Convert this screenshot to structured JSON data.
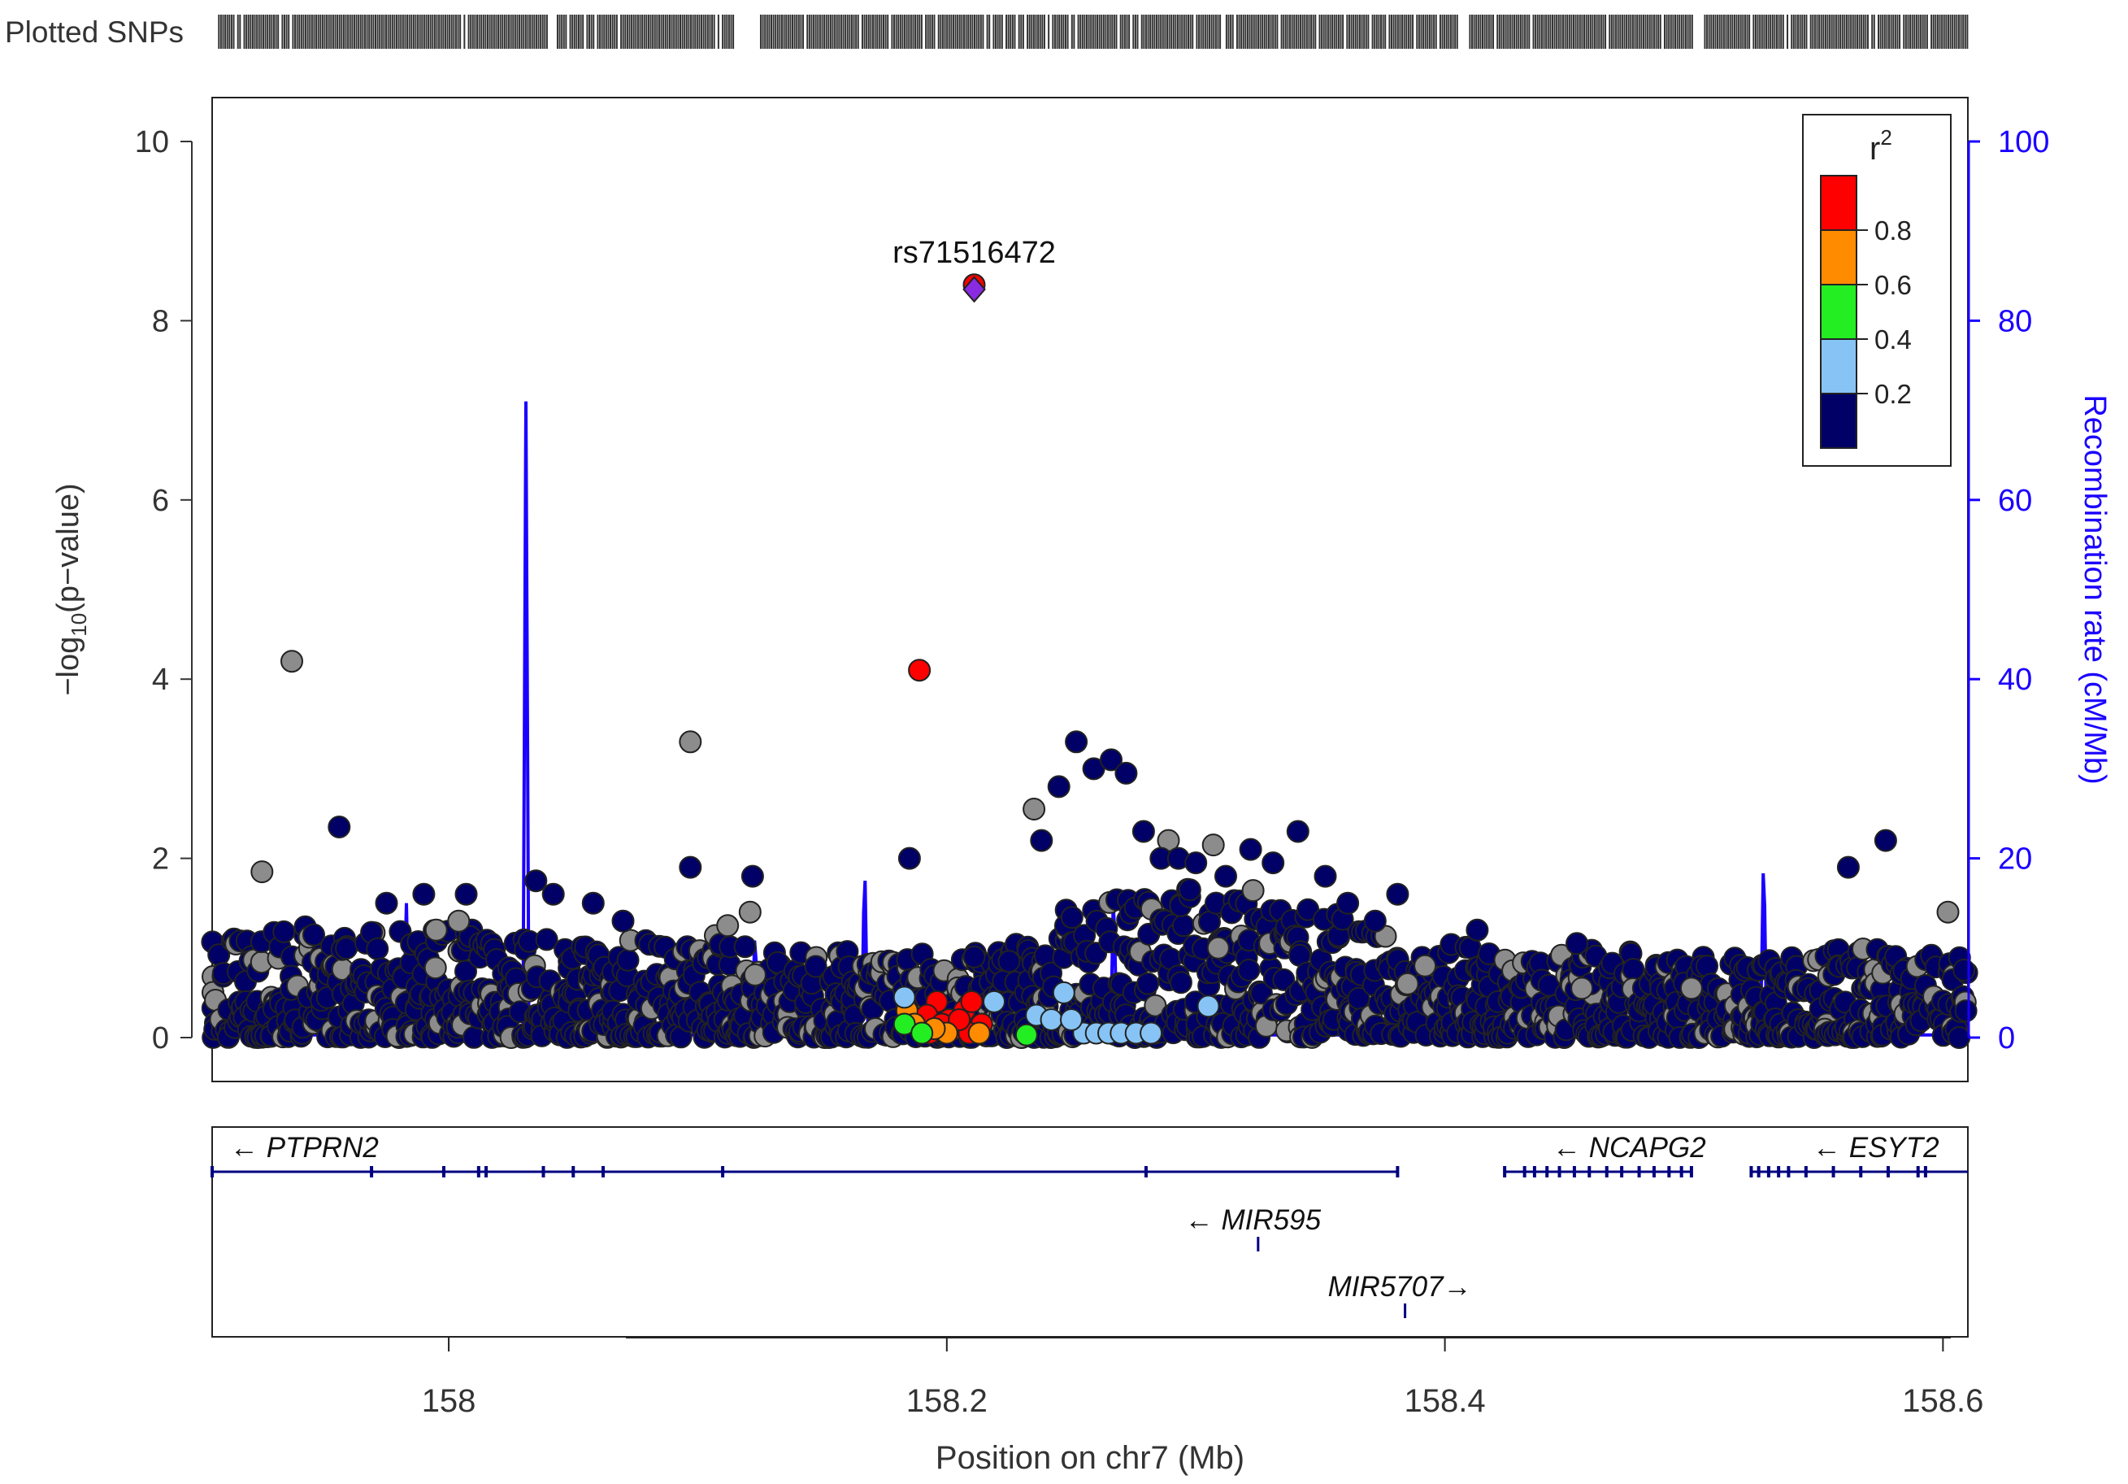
{
  "chart_data": {
    "type": "scatter",
    "title": "",
    "plotted_snps_label": "Plotted SNPs",
    "xlabel": "Position on chr7 (Mb)",
    "ylabel_left": "-log10(p-value)",
    "ylabel_right": "Recombination rate (cM/Mb)",
    "xlim": [
      157.905,
      158.61
    ],
    "ylim_left": [
      0,
      10
    ],
    "ylim_right": [
      0,
      100
    ],
    "x_ticks": [
      "158",
      "158.2",
      "158.4",
      "158.6"
    ],
    "x_tick_values": [
      158.0,
      158.2,
      158.4,
      158.6
    ],
    "y_ticks_left": [
      "0",
      "2",
      "4",
      "6",
      "8",
      "10"
    ],
    "y_ticks_right": [
      "0",
      "20",
      "40",
      "60",
      "80",
      "100"
    ],
    "lead_snp": {
      "name": "rs71516472",
      "x": 158.211,
      "y": 8.35
    },
    "legend": {
      "title": "r",
      "title_superscript": "2",
      "placement": "top-right",
      "bins": [
        {
          "label": "0.8",
          "color": "#ff0000"
        },
        {
          "label": "0.6",
          "color": "#ff8c00"
        },
        {
          "label": "0.4",
          "color": "#22ee22"
        },
        {
          "label": "0.2",
          "color": "#87c4f5"
        },
        {
          "label": "",
          "color": "#000066"
        }
      ]
    },
    "colors": {
      "navy": "#000066",
      "gray": "#8c8c8c",
      "lightblue": "#87c4f5",
      "green": "#22ee22",
      "orange": "#ff8c00",
      "red": "#ff0000",
      "lead": "#8a2be2",
      "recombination": "#1a00ff",
      "gene": "#000080"
    },
    "series": [
      {
        "name": "r2 0.8-1.0",
        "color_key": "red",
        "x": [
          158.211,
          158.189,
          158.196,
          158.207,
          158.21,
          158.201,
          158.214,
          158.186,
          158.192,
          158.203,
          158.198,
          158.209,
          158.193,
          158.205
        ],
        "y": [
          8.4,
          4.1,
          0.4,
          0.3,
          0.4,
          0.2,
          0.15,
          0.2,
          0.25,
          0.1,
          0.15,
          0.05,
          0.05,
          0.2
        ]
      },
      {
        "name": "r2 0.6-0.8",
        "color_key": "orange",
        "x": [
          158.184,
          158.187,
          158.213,
          158.2,
          158.195
        ],
        "y": [
          0.3,
          0.15,
          0.05,
          0.05,
          0.1
        ]
      },
      {
        "name": "r2 0.4-0.6",
        "color_key": "green",
        "x": [
          158.232,
          158.183,
          158.19
        ],
        "y": [
          0.03,
          0.15,
          0.05
        ]
      },
      {
        "name": "r2 0.2-0.4",
        "color_key": "lightblue",
        "x": [
          158.219,
          158.236,
          158.242,
          158.247,
          158.255,
          158.26,
          158.265,
          158.27,
          158.276,
          158.282,
          158.305,
          158.183,
          158.25
        ],
        "y": [
          0.4,
          0.25,
          0.2,
          0.5,
          0.05,
          0.05,
          0.05,
          0.05,
          0.05,
          0.05,
          0.35,
          0.45,
          0.2
        ]
      },
      {
        "name": "gray",
        "color_key": "gray",
        "x": [
          157.937,
          158.097,
          158.235,
          158.289,
          158.307,
          157.925,
          157.995,
          158.004,
          158.112,
          158.121,
          158.123,
          158.392,
          158.455,
          158.499,
          158.602,
          158.309,
          158.385
        ],
        "y": [
          4.2,
          3.3,
          2.55,
          2.2,
          2.15,
          1.85,
          1.2,
          1.3,
          1.25,
          1.4,
          0.7,
          0.8,
          0.55,
          0.55,
          1.4,
          1.0,
          0.6
        ]
      },
      {
        "name": "navy-highlights",
        "color_key": "navy",
        "x": [
          157.956,
          158.097,
          158.185,
          158.211,
          158.122,
          158.042,
          158.058,
          157.975,
          157.99,
          158.007,
          158.035,
          158.07,
          158.225,
          158.238,
          158.245,
          158.252,
          158.259,
          158.266,
          158.272,
          158.279,
          158.286,
          158.293,
          158.3,
          158.312,
          158.322,
          158.331,
          158.341,
          158.352,
          158.361,
          158.372,
          158.381,
          158.413,
          158.453,
          158.562,
          158.577
        ],
        "y": [
          2.35,
          1.9,
          2.0,
          0.9,
          1.8,
          1.6,
          1.5,
          1.5,
          1.6,
          1.6,
          1.75,
          1.3,
          0.85,
          2.2,
          2.8,
          3.3,
          3.0,
          3.1,
          2.95,
          2.3,
          2.0,
          2.0,
          1.95,
          1.8,
          2.1,
          1.95,
          2.3,
          1.8,
          1.5,
          1.3,
          1.6,
          1.2,
          1.05,
          1.9,
          2.2
        ]
      }
    ],
    "background_density": [
      [
        157.905,
        0.7
      ],
      [
        157.94,
        0.9
      ],
      [
        157.98,
        0.8
      ],
      [
        158.02,
        0.8
      ],
      [
        158.06,
        0.7
      ],
      [
        158.1,
        0.8
      ],
      [
        158.14,
        0.6
      ],
      [
        158.18,
        0.6
      ],
      [
        158.22,
        0.6
      ],
      [
        158.26,
        1.2
      ],
      [
        158.3,
        1.3
      ],
      [
        158.34,
        1.2
      ],
      [
        158.38,
        0.7
      ],
      [
        158.42,
        0.6
      ],
      [
        158.46,
        0.6
      ],
      [
        158.5,
        0.5
      ],
      [
        158.54,
        0.6
      ],
      [
        158.58,
        0.6
      ],
      [
        158.61,
        0.5
      ]
    ],
    "recombination_peaks": [
      {
        "x": 158.031,
        "rate": 71
      },
      {
        "x": 158.167,
        "rate": 21
      },
      {
        "x": 158.267,
        "rate": 18
      },
      {
        "x": 158.528,
        "rate": 22
      },
      {
        "x": 157.935,
        "rate": 11
      },
      {
        "x": 157.983,
        "rate": 15
      },
      {
        "x": 158.048,
        "rate": 10
      },
      {
        "x": 158.123,
        "rate": 13
      },
      {
        "x": 158.405,
        "rate": 6
      }
    ],
    "genes": [
      {
        "name": "PTPRN2",
        "direction": "left",
        "start": 157.905,
        "end": 158.381,
        "row": 0,
        "exons": [
          157.905,
          157.969,
          157.998,
          158.012,
          158.015,
          158.038,
          158.05,
          158.062,
          158.11,
          158.28,
          158.381
        ]
      },
      {
        "name": "NCAPG2",
        "direction": "left",
        "start": 158.424,
        "end": 158.499,
        "row": 0,
        "exons": [
          158.424,
          158.432,
          158.436,
          158.441,
          158.446,
          158.452,
          158.458,
          158.465,
          158.471,
          158.478,
          158.484,
          158.49,
          158.495,
          158.499
        ]
      },
      {
        "name": "ESYT2",
        "direction": "left",
        "start": 158.523,
        "end": 158.61,
        "row": 0,
        "exons": [
          158.523,
          158.526,
          158.53,
          158.534,
          158.538,
          158.545,
          158.556,
          158.567,
          158.578,
          158.59,
          158.593
        ]
      },
      {
        "name": "MIR595",
        "direction": "left",
        "start": 158.325,
        "end": 158.326,
        "row": 1,
        "exons": [
          158.325
        ]
      },
      {
        "name": "MIR5707",
        "direction": "right",
        "start": 158.384,
        "end": 158.385,
        "row": 2,
        "exons": [
          158.384
        ]
      }
    ]
  }
}
